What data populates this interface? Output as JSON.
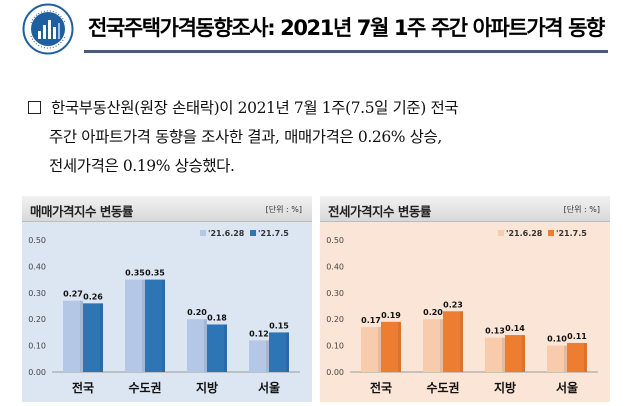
{
  "header": {
    "title": "전국주택가격동향조사: 2021년 7월 1주 주간 아파트가격 동향"
  },
  "paragraph": {
    "line1": "한국부동산원(원장 손태락)이 2021년 7월 1주(7.5일 기준) 전국",
    "line2": "주간 아파트가격 동향을 조사한 결과, 매매가격은 0.26% 상승,",
    "line3": "전세가격은 0.19% 상승했다."
  },
  "charts_meta": {
    "left": {
      "title": "매매가격지수 변동률",
      "unit": "[단위 : %]"
    },
    "right": {
      "title": "전세가격지수 변동률",
      "unit": "[단위 : %]"
    }
  },
  "chart_data": [
    {
      "type": "bar",
      "title": "매매가격지수 변동률",
      "unit": "[단위 : %]",
      "categories": [
        "전국",
        "수도권",
        "지방",
        "서울"
      ],
      "series": [
        {
          "name": "'21.6.28",
          "values": [
            0.27,
            0.35,
            0.2,
            0.12
          ],
          "color": "#b4c7e7"
        },
        {
          "name": "'21.7.5",
          "values": [
            0.26,
            0.35,
            0.18,
            0.15
          ],
          "color": "#2e75b6"
        }
      ],
      "ylim": [
        0,
        0.5
      ],
      "yticks": [
        "0.00",
        "0.10",
        "0.20",
        "0.30",
        "0.40",
        "0.50"
      ],
      "legend": "top-right",
      "background": "#dce6f2"
    },
    {
      "type": "bar",
      "title": "전세가격지수 변동률",
      "unit": "[단위 : %]",
      "categories": [
        "전국",
        "수도권",
        "지방",
        "서울"
      ],
      "series": [
        {
          "name": "'21.6.28",
          "values": [
            0.17,
            0.2,
            0.13,
            0.1
          ],
          "color": "#f8cbad"
        },
        {
          "name": "'21.7.5",
          "values": [
            0.19,
            0.23,
            0.14,
            0.11
          ],
          "color": "#ed7d31"
        }
      ],
      "ylim": [
        0,
        0.5
      ],
      "yticks": [
        "0.00",
        "0.10",
        "0.20",
        "0.30",
        "0.40",
        "0.50"
      ],
      "legend": "top-right",
      "background": "#fbe5d6"
    }
  ]
}
